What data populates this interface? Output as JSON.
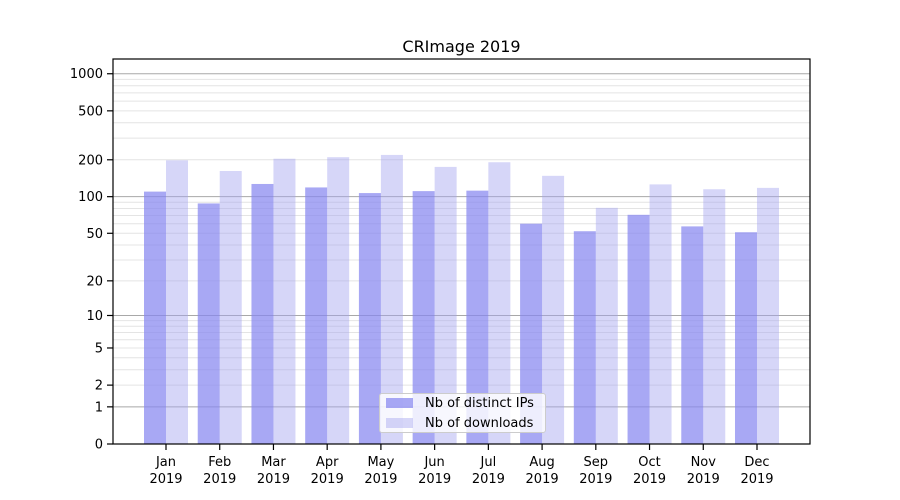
{
  "chart_data": {
    "type": "bar",
    "title": "CRImage 2019",
    "categories": [
      "Jan",
      "Feb",
      "Mar",
      "Apr",
      "May",
      "Jun",
      "Jul",
      "Aug",
      "Sep",
      "Oct",
      "Nov",
      "Dec"
    ],
    "year": "2019",
    "series": [
      {
        "name": "Nb of distinct IPs",
        "color": "rgba(134,134,240,0.72)",
        "values": [
          110,
          88,
          127,
          119,
          107,
          111,
          112,
          60,
          52,
          71,
          57,
          51
        ]
      },
      {
        "name": "Nb of downloads",
        "color": "rgba(164,164,240,0.45)",
        "values": [
          198,
          162,
          204,
          210,
          219,
          175,
          191,
          148,
          81,
          126,
          115,
          118
        ]
      }
    ],
    "yscale": "log1p",
    "yticks": [
      0,
      1,
      2,
      5,
      10,
      20,
      50,
      100,
      200,
      500,
      1000
    ],
    "ylim": [
      0,
      1320
    ],
    "xlabel": "",
    "ylabel": "",
    "grid": true,
    "legend_position": "lower-center"
  },
  "colors": {
    "major_grid": "#a8a8a8",
    "minor_grid": "#e4e4e4",
    "spine": "#000000",
    "background": "#ffffff"
  }
}
